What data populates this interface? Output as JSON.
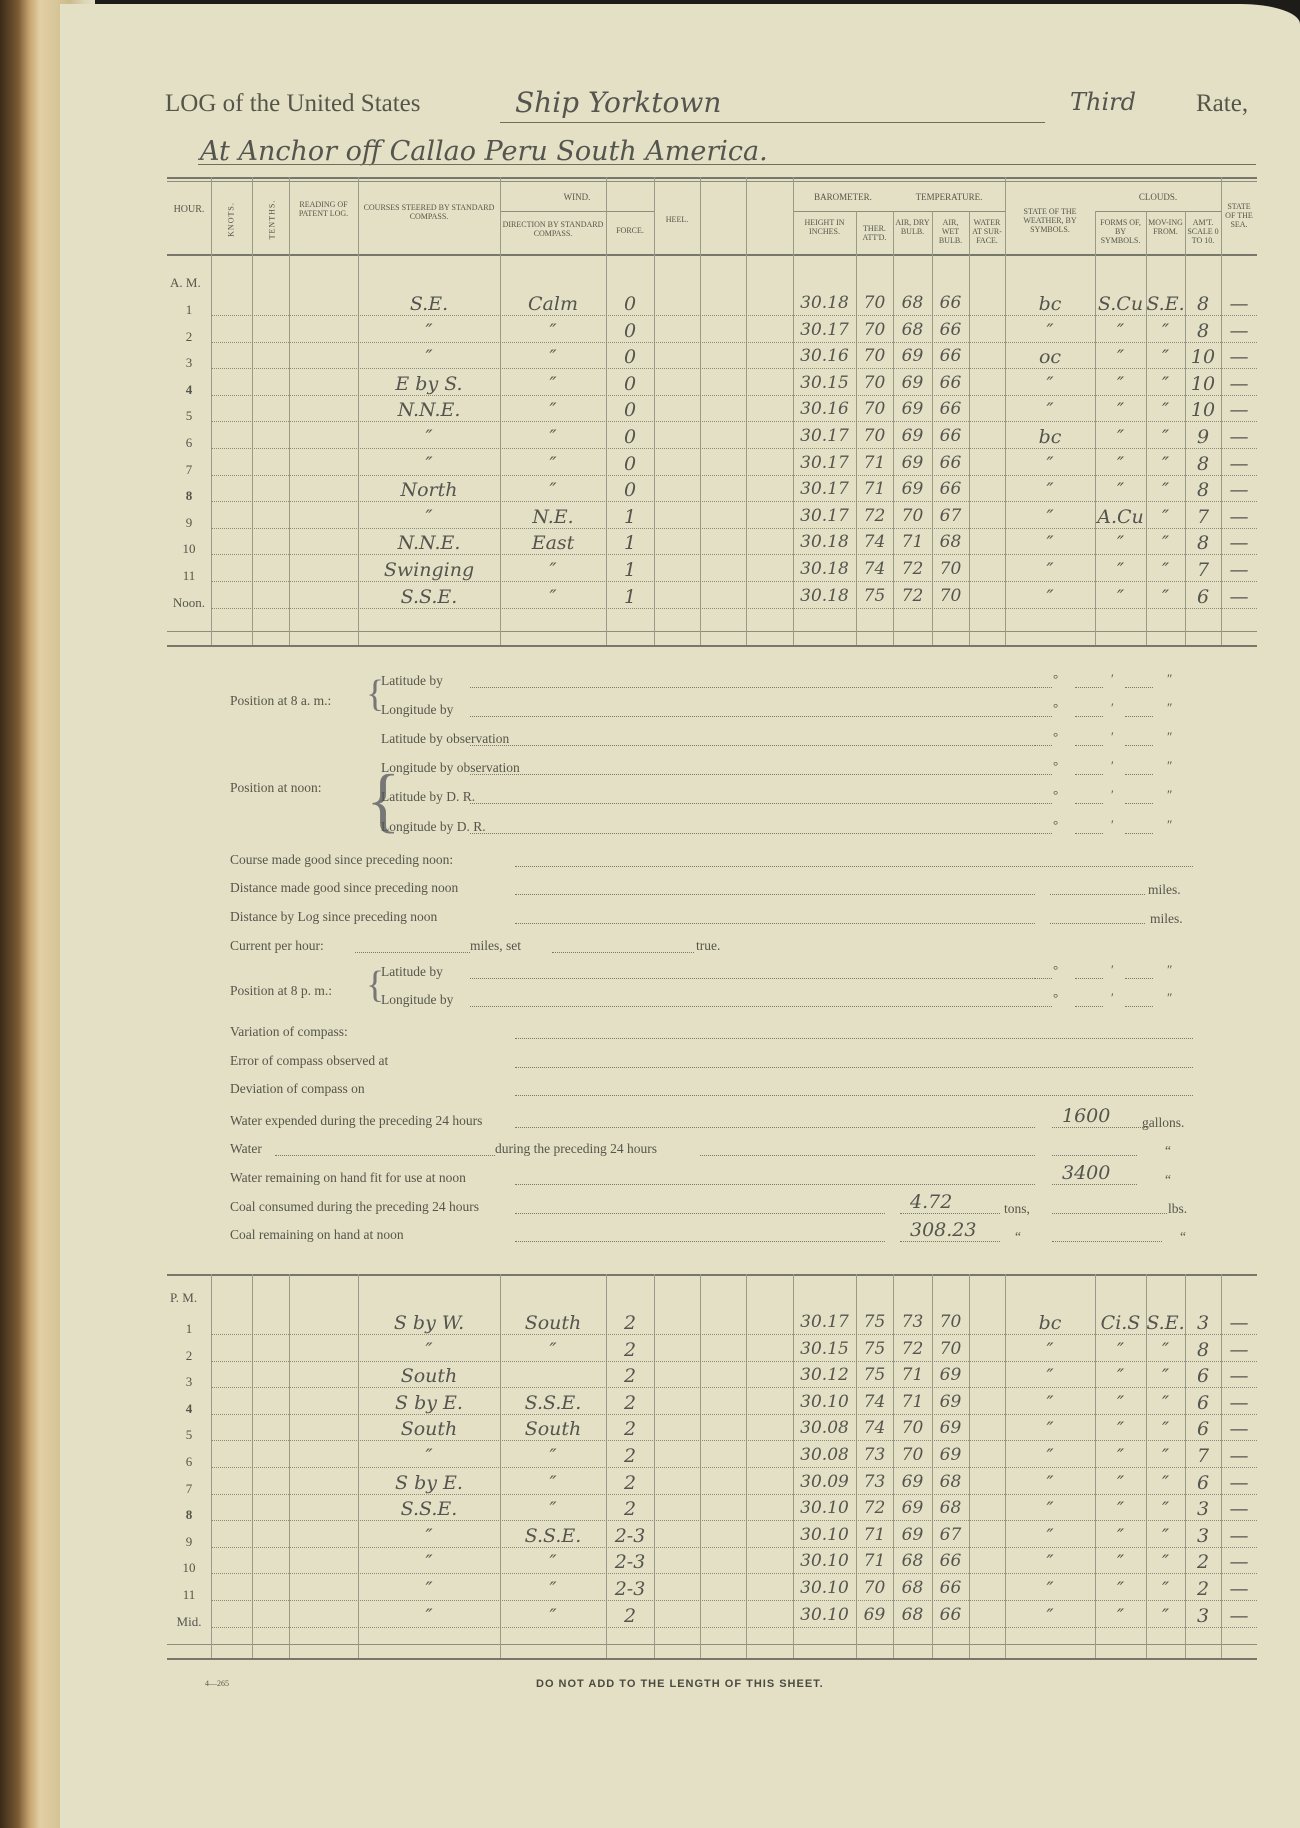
{
  "header": {
    "log_prefix": "LOG of the United States",
    "ship": "Ship Yorktown",
    "rate_value": "Third",
    "rate_label": "Rate,",
    "location": "At Anchor off Callao Peru  South America."
  },
  "columns": {
    "hour": "Hour.",
    "knots": "Knots.",
    "tenths": "Tenths.",
    "patent_log": "Reading of Patent Log.",
    "courses": "Courses steered by Standard Compass.",
    "wind": "Wind.",
    "wind_direction": "Direction by Standard Compass.",
    "wind_force": "Force.",
    "heel": "Heel.",
    "barometer": "Barometer.",
    "bar_height": "Height in Inches.",
    "bar_ther": "Ther. Att'd.",
    "temperature": "Temperature.",
    "air_dry": "Air, Dry Bulb.",
    "air_wet": "Air, Wet Bulb.",
    "water_surface": "Water at Sur-face.",
    "weather": "State of the Weather, by Symbols.",
    "clouds": "Clouds.",
    "cloud_forms": "Forms of, by Symbols.",
    "cloud_moving": "Mov-ing from.",
    "cloud_amount": "Am't. Scale 0 to 10.",
    "sea": "State of the Sea."
  },
  "am": {
    "label": "A. M.",
    "rows": [
      {
        "hour": "1",
        "courses": "S.E.",
        "wind_direction": "Calm",
        "force": "0",
        "height": "30.18",
        "ther": "70",
        "dry": "68",
        "wet": "66",
        "weather": "bc",
        "forms": "S.Cu",
        "moving": "S.E.",
        "amount": "8",
        "sea": "—"
      },
      {
        "hour": "2",
        "courses": "″",
        "wind_direction": "″",
        "force": "0",
        "height": "30.17",
        "ther": "70",
        "dry": "68",
        "wet": "66",
        "weather": "″",
        "forms": "″",
        "moving": "″",
        "amount": "8",
        "sea": "—"
      },
      {
        "hour": "3",
        "courses": "″",
        "wind_direction": "″",
        "force": "0",
        "height": "30.16",
        "ther": "70",
        "dry": "69",
        "wet": "66",
        "weather": "oc",
        "forms": "″",
        "moving": "″",
        "amount": "10",
        "sea": "—"
      },
      {
        "hour": "4",
        "courses": "E by S.",
        "wind_direction": "″",
        "force": "0",
        "height": "30.15",
        "ther": "70",
        "dry": "69",
        "wet": "66",
        "weather": "″",
        "forms": "″",
        "moving": "″",
        "amount": "10",
        "sea": "—"
      },
      {
        "hour": "5",
        "courses": "N.N.E.",
        "wind_direction": "″",
        "force": "0",
        "height": "30.16",
        "ther": "70",
        "dry": "69",
        "wet": "66",
        "weather": "″",
        "forms": "″",
        "moving": "″",
        "amount": "10",
        "sea": "—"
      },
      {
        "hour": "6",
        "courses": "″",
        "wind_direction": "″",
        "force": "0",
        "height": "30.17",
        "ther": "70",
        "dry": "69",
        "wet": "66",
        "weather": "bc",
        "forms": "″",
        "moving": "″",
        "amount": "9",
        "sea": "—"
      },
      {
        "hour": "7",
        "courses": "″",
        "wind_direction": "″",
        "force": "0",
        "height": "30.17",
        "ther": "71",
        "dry": "69",
        "wet": "66",
        "weather": "″",
        "forms": "″",
        "moving": "″",
        "amount": "8",
        "sea": "—"
      },
      {
        "hour": "8",
        "courses": "North",
        "wind_direction": "″",
        "force": "0",
        "height": "30.17",
        "ther": "71",
        "dry": "69",
        "wet": "66",
        "weather": "″",
        "forms": "″",
        "moving": "″",
        "amount": "8",
        "sea": "—"
      },
      {
        "hour": "9",
        "courses": "″",
        "wind_direction": "N.E.",
        "force": "1",
        "height": "30.17",
        "ther": "72",
        "dry": "70",
        "wet": "67",
        "weather": "″",
        "forms": "A.Cu",
        "moving": "″",
        "amount": "7",
        "sea": "—"
      },
      {
        "hour": "10",
        "courses": "N.N.E.",
        "wind_direction": "East",
        "force": "1",
        "height": "30.18",
        "ther": "74",
        "dry": "71",
        "wet": "68",
        "weather": "″",
        "forms": "″",
        "moving": "″",
        "amount": "8",
        "sea": "—"
      },
      {
        "hour": "11",
        "courses": "Swinging",
        "wind_direction": "″",
        "force": "1",
        "height": "30.18",
        "ther": "74",
        "dry": "72",
        "wet": "70",
        "weather": "″",
        "forms": "″",
        "moving": "″",
        "amount": "7",
        "sea": "—"
      },
      {
        "hour": "Noon.",
        "courses": "S.S.E.",
        "wind_direction": "″",
        "force": "1",
        "height": "30.18",
        "ther": "75",
        "dry": "72",
        "wet": "70",
        "weather": "″",
        "forms": "″",
        "moving": "″",
        "amount": "6",
        "sea": "—"
      }
    ]
  },
  "pm": {
    "label": "P. M.",
    "rows": [
      {
        "hour": "1",
        "courses": "S by W.",
        "wind_direction": "South",
        "force": "2",
        "height": "30.17",
        "ther": "75",
        "dry": "73",
        "wet": "70",
        "weather": "bc",
        "forms": "Ci.S",
        "moving": "S.E.",
        "amount": "3",
        "sea": "—"
      },
      {
        "hour": "2",
        "courses": "″",
        "wind_direction": "″",
        "force": "2",
        "height": "30.15",
        "ther": "75",
        "dry": "72",
        "wet": "70",
        "weather": "″",
        "forms": "″",
        "moving": "″",
        "amount": "8",
        "sea": "—"
      },
      {
        "hour": "3",
        "courses": "South",
        "wind_direction": "",
        "force": "2",
        "height": "30.12",
        "ther": "75",
        "dry": "71",
        "wet": "69",
        "weather": "″",
        "forms": "″",
        "moving": "″",
        "amount": "6",
        "sea": "—"
      },
      {
        "hour": "4",
        "courses": "S by E.",
        "wind_direction": "S.S.E.",
        "force": "2",
        "height": "30.10",
        "ther": "74",
        "dry": "71",
        "wet": "69",
        "weather": "″",
        "forms": "″",
        "moving": "″",
        "amount": "6",
        "sea": "—"
      },
      {
        "hour": "5",
        "courses": "South",
        "wind_direction": "South",
        "force": "2",
        "height": "30.08",
        "ther": "74",
        "dry": "70",
        "wet": "69",
        "weather": "″",
        "forms": "″",
        "moving": "″",
        "amount": "6",
        "sea": "—"
      },
      {
        "hour": "6",
        "courses": "″",
        "wind_direction": "″",
        "force": "2",
        "height": "30.08",
        "ther": "73",
        "dry": "70",
        "wet": "69",
        "weather": "″",
        "forms": "″",
        "moving": "″",
        "amount": "7",
        "sea": "—"
      },
      {
        "hour": "7",
        "courses": "S by E.",
        "wind_direction": "″",
        "force": "2",
        "height": "30.09",
        "ther": "73",
        "dry": "69",
        "wet": "68",
        "weather": "″",
        "forms": "″",
        "moving": "″",
        "amount": "6",
        "sea": "—"
      },
      {
        "hour": "8",
        "courses": "S.S.E.",
        "wind_direction": "″",
        "force": "2",
        "height": "30.10",
        "ther": "72",
        "dry": "69",
        "wet": "68",
        "weather": "″",
        "forms": "″",
        "moving": "″",
        "amount": "3",
        "sea": "—"
      },
      {
        "hour": "9",
        "courses": "″",
        "wind_direction": "S.S.E.",
        "force": "2-3",
        "height": "30.10",
        "ther": "71",
        "dry": "69",
        "wet": "67",
        "weather": "″",
        "forms": "″",
        "moving": "″",
        "amount": "3",
        "sea": "—"
      },
      {
        "hour": "10",
        "courses": "″",
        "wind_direction": "″",
        "force": "2-3",
        "height": "30.10",
        "ther": "71",
        "dry": "68",
        "wet": "66",
        "weather": "″",
        "forms": "″",
        "moving": "″",
        "amount": "2",
        "sea": "—"
      },
      {
        "hour": "11",
        "courses": "″",
        "wind_direction": "″",
        "force": "2-3",
        "height": "30.10",
        "ther": "70",
        "dry": "68",
        "wet": "66",
        "weather": "″",
        "forms": "″",
        "moving": "″",
        "amount": "2",
        "sea": "—"
      },
      {
        "hour": "Mid.",
        "courses": "″",
        "wind_direction": "″",
        "force": "2",
        "height": "30.10",
        "ther": "69",
        "dry": "68",
        "wet": "66",
        "weather": "″",
        "forms": "″",
        "moving": "″",
        "amount": "3",
        "sea": "—"
      }
    ]
  },
  "position": {
    "at_8am": "Position at 8 a. m.:",
    "at_noon": "Position at noon:",
    "at_8pm": "Position at 8 p. m.:",
    "latitude_by": "Latitude by",
    "longitude_by": "Longitude by",
    "lat_obs": "Latitude by observation",
    "lon_obs": "Longitude by observation",
    "lat_dr": "Latitude by D. R.",
    "lon_dr": "Longitude by D. R.",
    "deg": "°",
    "min": "′",
    "sec": "″"
  },
  "form": {
    "course_made_good": "Course made good since preceding noon:",
    "distance_made_good": "Distance made good since preceding noon",
    "distance_by_log": "Distance by Log since preceding noon",
    "miles": "miles.",
    "current_per_hour": "Current per hour:",
    "miles_set": "miles, set",
    "true": "true.",
    "variation": "Variation of compass:",
    "error": "Error of compass observed at",
    "deviation": "Deviation of compass on",
    "water_expended": "Water expended during the preceding 24 hours",
    "water_expended_value": "1600",
    "gallons": "gallons.",
    "water": "Water",
    "water_during": "during the preceding 24 hours",
    "water_remaining": "Water remaining on hand fit for use at noon",
    "water_remaining_value": "3400",
    "coal_consumed": "Coal consumed during the preceding 24 hours",
    "coal_consumed_value": "4.72",
    "tons": "tons,",
    "lbs": "lbs.",
    "coal_remaining": "Coal remaining on hand at noon",
    "coal_remaining_value": "308.23",
    "ditto": "“"
  },
  "footer": {
    "form_number": "4—265",
    "notice": "DO NOT ADD TO THE LENGTH OF THIS SHEET."
  }
}
